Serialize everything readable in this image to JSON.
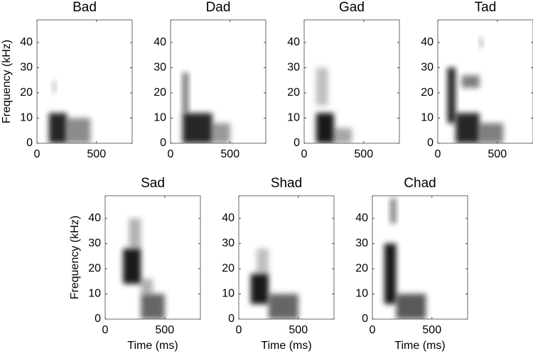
{
  "chart_data": [
    {
      "type": "spectrogram",
      "title": "Bad",
      "ylabel": "Frequency (kHz)",
      "xlim": [
        0,
        800
      ],
      "ylim": [
        0,
        49
      ],
      "xticks": [
        0,
        500
      ],
      "yticks": [
        0,
        10,
        20,
        30,
        40
      ],
      "regions": [
        {
          "t": [
            100,
            250
          ],
          "f": [
            0,
            12
          ],
          "level": 0.85
        },
        {
          "t": [
            250,
            450
          ],
          "f": [
            0,
            10
          ],
          "level": 0.45
        },
        {
          "t": [
            130,
            160
          ],
          "f": [
            20,
            25
          ],
          "level": 0.25
        }
      ]
    },
    {
      "type": "spectrogram",
      "title": "Dad",
      "xlim": [
        0,
        800
      ],
      "ylim": [
        0,
        49
      ],
      "xticks": [
        0,
        500
      ],
      "yticks": [
        0,
        10,
        20,
        30,
        40
      ],
      "regions": [
        {
          "t": [
            100,
            350
          ],
          "f": [
            0,
            12
          ],
          "level": 0.85
        },
        {
          "t": [
            350,
            500
          ],
          "f": [
            0,
            8
          ],
          "level": 0.4
        },
        {
          "t": [
            100,
            150
          ],
          "f": [
            12,
            28
          ],
          "level": 0.55
        }
      ]
    },
    {
      "type": "spectrogram",
      "title": "Gad",
      "xlim": [
        0,
        800
      ],
      "ylim": [
        0,
        49
      ],
      "xticks": [
        0,
        500
      ],
      "yticks": [
        0,
        10,
        20,
        30,
        40
      ],
      "regions": [
        {
          "t": [
            100,
            250
          ],
          "f": [
            0,
            12
          ],
          "level": 0.9
        },
        {
          "t": [
            250,
            400
          ],
          "f": [
            0,
            6
          ],
          "level": 0.35
        },
        {
          "t": [
            100,
            200
          ],
          "f": [
            15,
            30
          ],
          "level": 0.25
        }
      ]
    },
    {
      "type": "spectrogram",
      "title": "Tad",
      "xlim": [
        0,
        800
      ],
      "ylim": [
        0,
        49
      ],
      "xticks": [
        0,
        500
      ],
      "yticks": [
        0,
        10,
        20,
        30,
        40
      ],
      "regions": [
        {
          "t": [
            80,
            150
          ],
          "f": [
            8,
            30
          ],
          "level": 0.85
        },
        {
          "t": [
            150,
            350
          ],
          "f": [
            0,
            12
          ],
          "level": 0.85
        },
        {
          "t": [
            350,
            550
          ],
          "f": [
            0,
            8
          ],
          "level": 0.5
        },
        {
          "t": [
            200,
            350
          ],
          "f": [
            22,
            27
          ],
          "level": 0.5
        },
        {
          "t": [
            350,
            380
          ],
          "f": [
            38,
            42
          ],
          "level": 0.3
        }
      ]
    },
    {
      "type": "spectrogram",
      "title": "Sad",
      "xlabel": "Time (ms)",
      "ylabel": "Frequency (kHz)",
      "xlim": [
        0,
        800
      ],
      "ylim": [
        0,
        49
      ],
      "xticks": [
        0,
        500
      ],
      "yticks": [
        0,
        10,
        20,
        30,
        40
      ],
      "regions": [
        {
          "t": [
            150,
            300
          ],
          "f": [
            14,
            28
          ],
          "level": 0.9
        },
        {
          "t": [
            200,
            300
          ],
          "f": [
            28,
            40
          ],
          "level": 0.3
        },
        {
          "t": [
            300,
            500
          ],
          "f": [
            0,
            10
          ],
          "level": 0.6
        },
        {
          "t": [
            300,
            400
          ],
          "f": [
            10,
            16
          ],
          "level": 0.3
        }
      ]
    },
    {
      "type": "spectrogram",
      "title": "Shad",
      "xlabel": "Time (ms)",
      "xlim": [
        0,
        800
      ],
      "ylim": [
        0,
        49
      ],
      "xticks": [
        0,
        500
      ],
      "yticks": [
        0,
        10,
        20,
        30,
        40
      ],
      "regions": [
        {
          "t": [
            100,
            250
          ],
          "f": [
            6,
            18
          ],
          "level": 0.9
        },
        {
          "t": [
            250,
            500
          ],
          "f": [
            0,
            10
          ],
          "level": 0.6
        },
        {
          "t": [
            150,
            250
          ],
          "f": [
            18,
            28
          ],
          "level": 0.25
        }
      ]
    },
    {
      "type": "spectrogram",
      "title": "Chad",
      "xlabel": "Time (ms)",
      "xlim": [
        0,
        800
      ],
      "ylim": [
        0,
        49
      ],
      "xticks": [
        0,
        500
      ],
      "yticks": [
        0,
        10,
        20,
        30,
        40
      ],
      "regions": [
        {
          "t": [
            100,
            200
          ],
          "f": [
            6,
            30
          ],
          "level": 0.9
        },
        {
          "t": [
            150,
            200
          ],
          "f": [
            38,
            48
          ],
          "level": 0.5
        },
        {
          "t": [
            200,
            450
          ],
          "f": [
            0,
            10
          ],
          "level": 0.65
        }
      ]
    }
  ]
}
